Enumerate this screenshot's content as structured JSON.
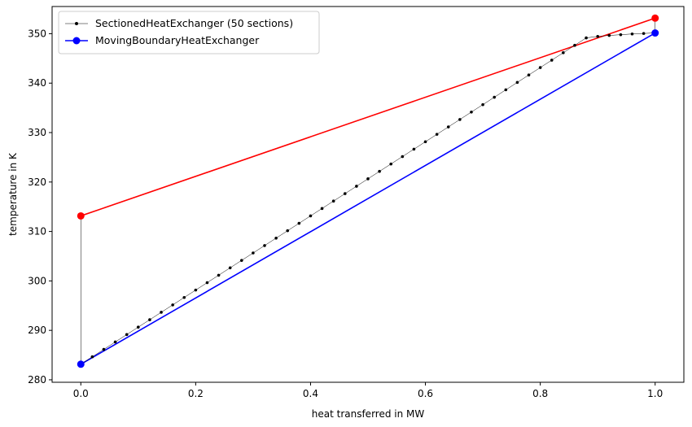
{
  "chart_data": {
    "type": "line",
    "xlabel": "heat transferred in MW",
    "ylabel": "temperature in K",
    "xlim": [
      -0.05,
      1.05
    ],
    "ylim": [
      279.5,
      355.5
    ],
    "xticks": [
      0.0,
      0.2,
      0.4,
      0.6,
      0.8,
      1.0
    ],
    "xtick_labels": [
      "0.0",
      "0.2",
      "0.4",
      "0.6",
      "0.8",
      "1.0"
    ],
    "yticks": [
      280,
      290,
      300,
      310,
      320,
      330,
      340,
      350
    ],
    "ytick_labels": [
      "280",
      "290",
      "300",
      "310",
      "320",
      "330",
      "340",
      "350"
    ],
    "grid": false,
    "legend_position": "top-left",
    "series": [
      {
        "name": "SectionedHeatExchanger (50 sections)",
        "role": "sectioned",
        "color": "#000000",
        "marker": "dot",
        "hot": {
          "x": [
            0.0,
            1.0
          ],
          "y": [
            313.15,
            353.15
          ]
        },
        "cold": {
          "x": [
            0.0,
            0.02,
            0.04,
            0.06,
            0.08,
            0.1,
            0.12,
            0.14,
            0.16,
            0.18,
            0.2,
            0.22,
            0.24,
            0.26,
            0.28,
            0.3,
            0.32,
            0.34,
            0.36,
            0.38,
            0.4,
            0.42,
            0.44,
            0.46,
            0.48,
            0.5,
            0.52,
            0.54,
            0.56,
            0.58,
            0.6,
            0.62,
            0.64,
            0.66,
            0.68,
            0.7,
            0.72,
            0.74,
            0.76,
            0.78,
            0.8,
            0.82,
            0.84,
            0.86,
            0.88,
            0.9,
            0.92,
            0.94,
            0.96,
            0.98,
            1.0
          ],
          "y": [
            283.15,
            284.65,
            286.15,
            287.65,
            289.15,
            290.65,
            292.15,
            293.65,
            295.15,
            296.65,
            298.15,
            299.65,
            301.15,
            302.65,
            304.15,
            305.65,
            307.15,
            308.65,
            310.15,
            311.65,
            313.15,
            314.65,
            316.15,
            317.65,
            319.15,
            320.65,
            322.15,
            323.65,
            325.15,
            326.65,
            328.15,
            329.65,
            331.15,
            332.65,
            334.15,
            335.65,
            337.15,
            338.65,
            340.15,
            341.65,
            343.15,
            344.65,
            346.15,
            347.65,
            349.15,
            349.45,
            349.65,
            349.8,
            349.95,
            350.05,
            350.15
          ]
        }
      },
      {
        "name": "MovingBoundaryHeatExchanger",
        "role": "moving_boundary",
        "hot": {
          "x": [
            0.0,
            1.0
          ],
          "y": [
            313.15,
            353.15
          ],
          "color": "#ff0000"
        },
        "cold": {
          "x": [
            0.0,
            1.0
          ],
          "y": [
            283.15,
            350.15
          ],
          "color": "#0000ff"
        },
        "marker": "circle"
      }
    ]
  }
}
